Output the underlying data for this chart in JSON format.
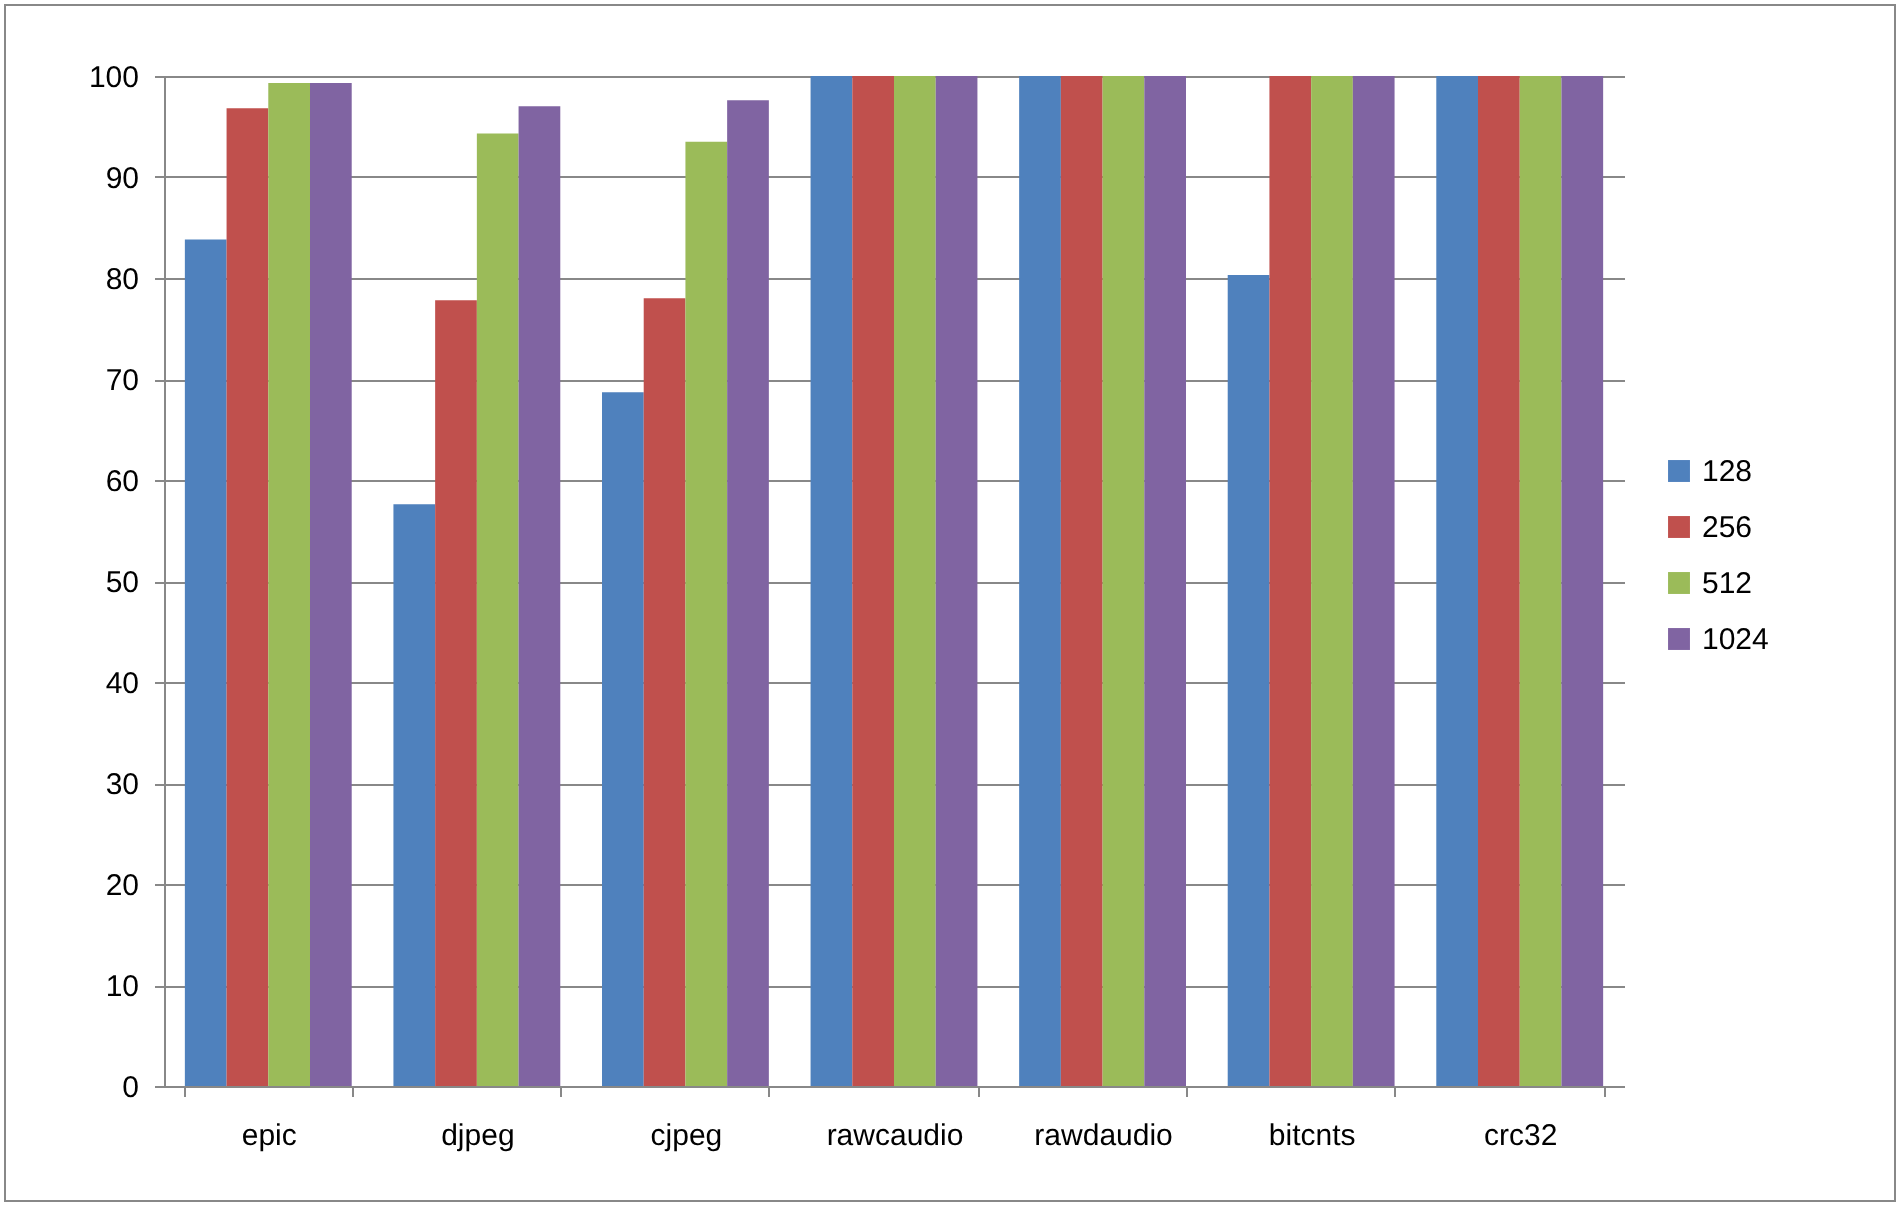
{
  "chart_data": {
    "type": "bar",
    "categories": [
      "epic",
      "djpeg",
      "cjpeg",
      "rawcaudio",
      "rawdaudio",
      "bitcnts",
      "crc32"
    ],
    "series": [
      {
        "name": "128",
        "color": "#4f81bd",
        "values": [
          83.8,
          57.6,
          68.7,
          100,
          100,
          80.3,
          100
        ]
      },
      {
        "name": "256",
        "color": "#c0504d",
        "values": [
          96.8,
          77.8,
          78.0,
          100,
          100,
          100,
          100
        ]
      },
      {
        "name": "512",
        "color": "#9bbb59",
        "values": [
          99.3,
          94.3,
          93.5,
          100,
          100,
          100,
          100
        ]
      },
      {
        "name": "1024",
        "color": "#8064a2",
        "values": [
          99.3,
          97.0,
          97.6,
          100,
          100,
          100,
          100
        ]
      }
    ],
    "ylim": [
      0,
      100
    ],
    "yticks": [
      0,
      10,
      20,
      30,
      40,
      50,
      60,
      70,
      80,
      90,
      100
    ],
    "grid": "y",
    "legend": "right"
  }
}
